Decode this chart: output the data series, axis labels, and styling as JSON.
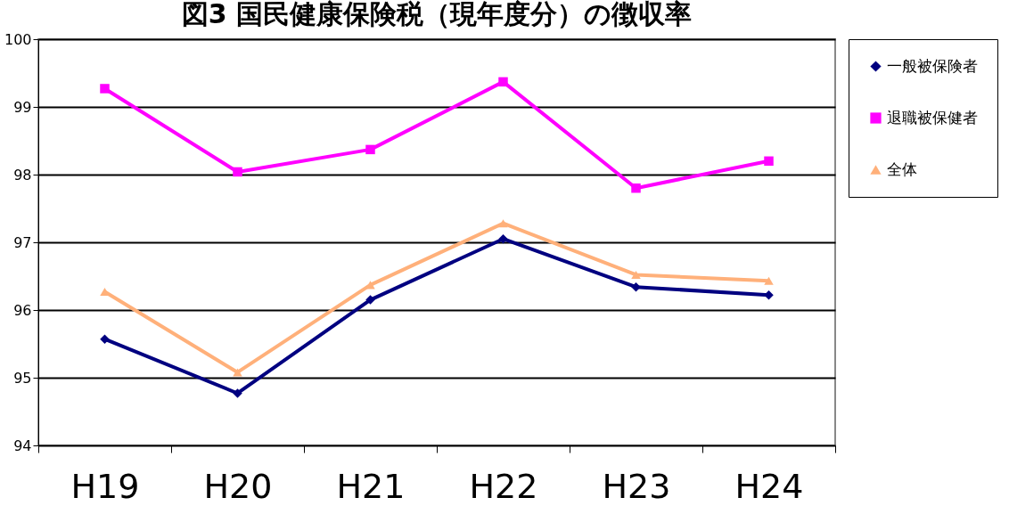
{
  "chart_data": {
    "type": "line",
    "title": "図3 国民健康保険税（現年度分）の徴収率",
    "categories": [
      "H19",
      "H20",
      "H21",
      "H22",
      "H23",
      "H24"
    ],
    "series": [
      {
        "name": "一般被保険者",
        "color": "#000080",
        "marker": "diamond",
        "values": [
          95.57,
          94.77,
          96.15,
          97.05,
          96.34,
          96.22
        ]
      },
      {
        "name": "退職被保健者",
        "color": "#ff00ff",
        "marker": "square",
        "values": [
          99.27,
          98.04,
          98.37,
          99.37,
          97.8,
          98.2
        ]
      },
      {
        "name": "全体",
        "color": "#ffb07a",
        "marker": "triangle",
        "values": [
          96.27,
          95.08,
          96.37,
          97.28,
          96.52,
          96.43
        ]
      }
    ],
    "ylim": [
      94,
      100
    ],
    "yticks": [
      94,
      95,
      96,
      97,
      98,
      99,
      100
    ],
    "grid": "y",
    "legend": "right"
  }
}
